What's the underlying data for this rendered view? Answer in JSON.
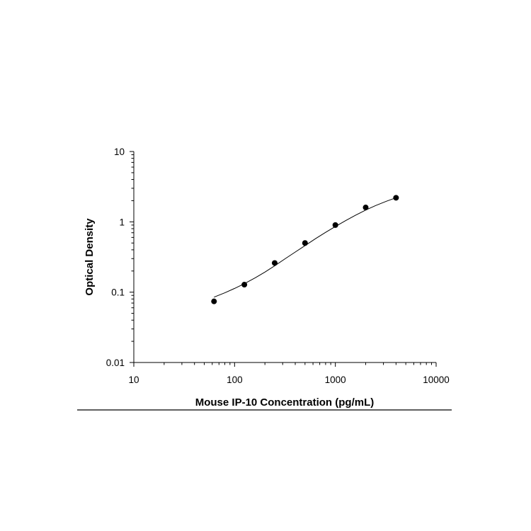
{
  "chart_data": {
    "type": "scatter",
    "title": "",
    "xlabel": "Mouse IP-10 Concentration (pg/mL)",
    "ylabel": "Optical Density",
    "xscale": "log",
    "yscale": "log",
    "xlim": [
      10,
      10000
    ],
    "ylim": [
      0.01,
      10
    ],
    "x_ticks": [
      10,
      100,
      1000,
      10000
    ],
    "y_ticks": [
      0.01,
      0.1,
      1,
      10
    ],
    "x_tick_labels": [
      "10",
      "100",
      "1000",
      "10000"
    ],
    "y_tick_labels": [
      "0.01",
      "0.1",
      "1",
      "10"
    ],
    "grid": false,
    "legend": "none",
    "series": [
      {
        "marker": "filled-circle",
        "color": "#000000",
        "x": [
          62.5,
          125,
          250,
          500,
          1000,
          2000,
          4000
        ],
        "y": [
          0.074,
          0.128,
          0.26,
          0.5,
          0.9,
          1.6,
          2.2
        ]
      }
    ],
    "fit_curve": {
      "color": "#000000",
      "x": [
        62.5,
        80,
        100,
        125,
        160,
        200,
        250,
        320,
        400,
        500,
        640,
        800,
        1000,
        1280,
        1600,
        2000,
        2500,
        3200,
        4000
      ],
      "y": [
        0.085,
        0.098,
        0.113,
        0.132,
        0.16,
        0.193,
        0.237,
        0.301,
        0.372,
        0.459,
        0.58,
        0.708,
        0.857,
        1.05,
        1.25,
        1.47,
        1.7,
        1.96,
        2.2
      ]
    }
  }
}
